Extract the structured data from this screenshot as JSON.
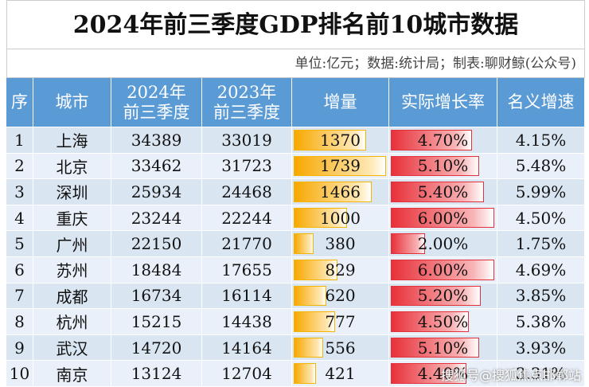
{
  "header": {
    "title": "2024年前三季度GDP排名前10城市数据",
    "subtitle": "单位:亿元；数据:统计局；制表:聊财鲸(公众号)"
  },
  "table": {
    "headers": [
      [
        "序"
      ],
      [
        "城市"
      ],
      [
        "2024年",
        "前三季度"
      ],
      [
        "2023年",
        "前三季度"
      ],
      [
        "增量"
      ],
      [
        "实际增长率"
      ],
      [
        "名义增速"
      ]
    ],
    "rows": [
      [
        1,
        "上海",
        34389,
        33019,
        1370,
        "4.70%",
        "4.15%"
      ],
      [
        2,
        "北京",
        33462,
        31723,
        1739,
        "5.10%",
        "5.48%"
      ],
      [
        3,
        "深圳",
        25934,
        24468,
        1466,
        "5.40%",
        "5.99%"
      ],
      [
        4,
        "重庆",
        23244,
        22244,
        1000,
        "6.00%",
        "4.50%"
      ],
      [
        5,
        "广州",
        22150,
        21770,
        380,
        "2.00%",
        "1.75%"
      ],
      [
        6,
        "苏州",
        18484,
        17655,
        829,
        "6.00%",
        "4.69%"
      ],
      [
        7,
        "成都",
        16734,
        16114,
        620,
        "5.20%",
        "3.85%"
      ],
      [
        8,
        "杭州",
        15215,
        14438,
        777,
        "4.50%",
        "5.38%"
      ],
      [
        9,
        "武汉",
        14720,
        14164,
        556,
        "5.10%",
        "3.93%"
      ],
      [
        10,
        "南京",
        13124,
        12704,
        421,
        "4.40%",
        "3.31%"
      ]
    ]
  },
  "watermark": "搜狐号@搜狐焦点邯郸站"
}
